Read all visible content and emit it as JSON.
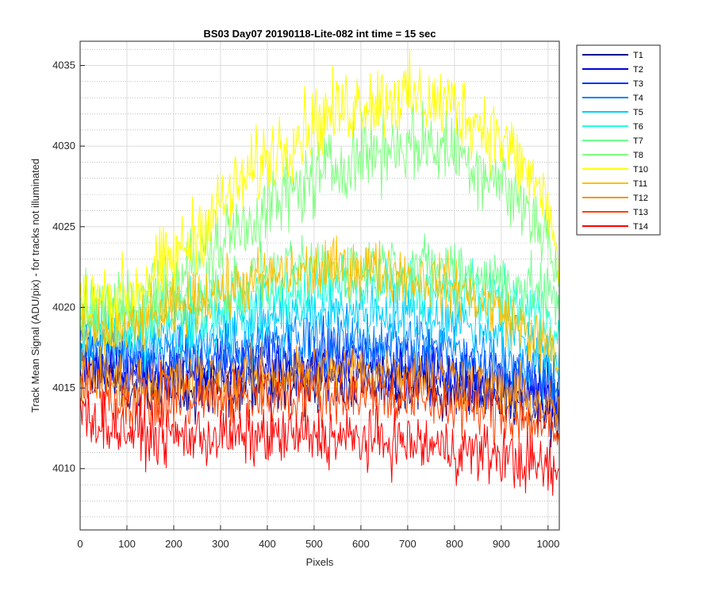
{
  "chart_data": {
    "type": "line",
    "title": "BS03 Day07 20190118-Lite-082 int time = 15 sec",
    "xlabel": "Pixels",
    "ylabel": "Track Mean Signal (ADU/pix) - for tracks not illuminated",
    "xlim": [
      0,
      1024
    ],
    "ylim": [
      4006.2,
      4036.5
    ],
    "xticks": [
      0,
      100,
      200,
      300,
      400,
      500,
      600,
      700,
      800,
      900,
      1000
    ],
    "yticks": [
      4010,
      4015,
      4020,
      4025,
      4030,
      4035
    ],
    "grid": true,
    "minor_grid_y": true,
    "legend_position": "outside-top-right",
    "x": [
      0,
      100,
      200,
      300,
      400,
      500,
      600,
      700,
      800,
      900,
      1000,
      1024
    ],
    "series": [
      {
        "name": "T1",
        "color": "#00008f",
        "values": [
          4016.5,
          4015.0,
          4014.8,
          4015.0,
          4015.3,
          4015.5,
          4015.5,
          4015.3,
          4015.0,
          4014.5,
          4013.5,
          4013.0
        ]
      },
      {
        "name": "T2",
        "color": "#0000df",
        "values": [
          4017.0,
          4015.8,
          4015.8,
          4016.0,
          4016.2,
          4016.3,
          4016.3,
          4016.0,
          4015.7,
          4015.2,
          4014.5,
          4014.0
        ]
      },
      {
        "name": "T3",
        "color": "#0030ff",
        "values": [
          4017.5,
          4016.5,
          4016.3,
          4016.6,
          4016.8,
          4017.0,
          4017.0,
          4016.7,
          4016.3,
          4015.8,
          4015.0,
          4014.5
        ]
      },
      {
        "name": "T4",
        "color": "#0080ff",
        "values": [
          4018.0,
          4017.3,
          4017.2,
          4017.5,
          4017.8,
          4018.0,
          4018.0,
          4017.8,
          4017.4,
          4016.8,
          4016.0,
          4015.5
        ]
      },
      {
        "name": "T5",
        "color": "#00cfff",
        "values": [
          4018.7,
          4018.0,
          4018.3,
          4018.8,
          4019.2,
          4019.6,
          4019.8,
          4019.6,
          4019.2,
          4018.5,
          4017.5,
          4016.8
        ]
      },
      {
        "name": "T6",
        "color": "#20ffdf",
        "values": [
          4019.3,
          4018.8,
          4019.3,
          4020.0,
          4020.6,
          4021.0,
          4021.3,
          4021.2,
          4020.9,
          4020.4,
          4019.5,
          4018.5
        ]
      },
      {
        "name": "T7",
        "color": "#70ff8f",
        "values": [
          4019.8,
          4019.5,
          4020.3,
          4021.2,
          4021.9,
          4022.4,
          4022.7,
          4022.6,
          4022.3,
          4021.7,
          4020.8,
          4019.8
        ]
      },
      {
        "name": "T8",
        "color": "#80ff80",
        "values": [
          4019.5,
          4020.0,
          4021.8,
          4024.0,
          4026.2,
          4028.0,
          4029.5,
          4030.2,
          4029.8,
          4027.8,
          4024.5,
          4021.0
        ]
      },
      {
        "name": "T10",
        "color": "#ffff00",
        "values": [
          4020.0,
          4020.8,
          4023.0,
          4026.3,
          4029.3,
          4031.5,
          4032.8,
          4033.0,
          4032.5,
          4030.5,
          4026.5,
          4022.0
        ]
      },
      {
        "name": "T11",
        "color": "#ffbf00",
        "values": [
          4018.2,
          4018.5,
          4019.8,
          4021.0,
          4021.8,
          4022.3,
          4022.5,
          4022.0,
          4021.2,
          4019.8,
          4017.5,
          4016.0
        ]
      },
      {
        "name": "T12",
        "color": "#ff8f00",
        "values": [
          4015.8,
          4015.3,
          4015.3,
          4015.5,
          4015.8,
          4016.0,
          4016.0,
          4015.8,
          4015.5,
          4014.8,
          4013.8,
          4013.2
        ]
      },
      {
        "name": "T13",
        "color": "#ff4000",
        "values": [
          4015.0,
          4014.3,
          4014.2,
          4014.3,
          4014.5,
          4014.6,
          4014.6,
          4014.4,
          4014.0,
          4013.5,
          4012.5,
          4012.0
        ]
      },
      {
        "name": "T14",
        "color": "#ff0000",
        "values": [
          4013.5,
          4012.3,
          4012.0,
          4012.0,
          4012.0,
          4012.0,
          4011.8,
          4011.6,
          4011.2,
          4010.8,
          4010.0,
          4009.5
        ]
      }
    ]
  }
}
